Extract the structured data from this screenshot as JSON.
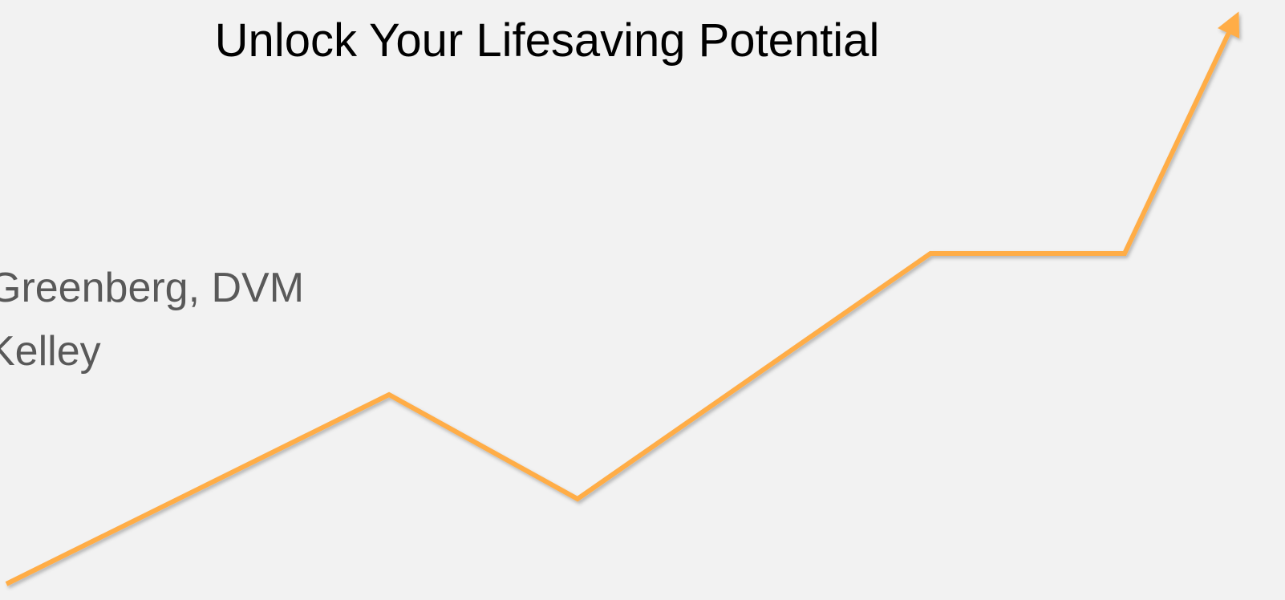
{
  "slide": {
    "title": "Unlock Your Lifesaving Potential",
    "authors": [
      "Greenberg, DVM",
      "Kelley"
    ]
  }
}
